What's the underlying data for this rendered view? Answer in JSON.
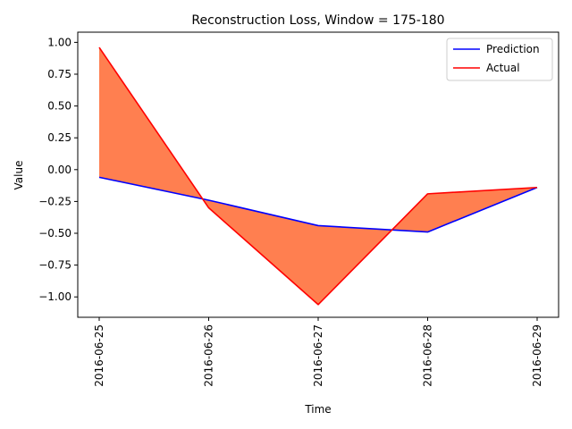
{
  "chart_data": {
    "type": "line",
    "title": "Reconstruction Loss, Window = 175-180",
    "xlabel": "Time",
    "ylabel": "Value",
    "categories": [
      "2016-06-25",
      "2016-06-26",
      "2016-06-27",
      "2016-06-28",
      "2016-06-29"
    ],
    "ylim": [
      -1.16,
      1.08
    ],
    "yticks": [
      1.0,
      0.75,
      0.5,
      0.25,
      0.0,
      -0.25,
      -0.5,
      -0.75,
      -1.0
    ],
    "ytick_labels": [
      "1.00",
      "0.75",
      "0.50",
      "0.25",
      "0.00",
      "−0.25",
      "−0.50",
      "−0.75",
      "−1.00"
    ],
    "grid": false,
    "legend_position": "top-right",
    "fill_between": true,
    "fill_color": "#ff7f50",
    "series": [
      {
        "name": "Prediction",
        "color": "#0000ff",
        "values": [
          -0.06,
          -0.24,
          -0.44,
          -0.49,
          -0.14
        ]
      },
      {
        "name": "Actual",
        "color": "#ff0000",
        "values": [
          0.96,
          -0.3,
          -1.06,
          -0.19,
          -0.14
        ]
      }
    ]
  }
}
